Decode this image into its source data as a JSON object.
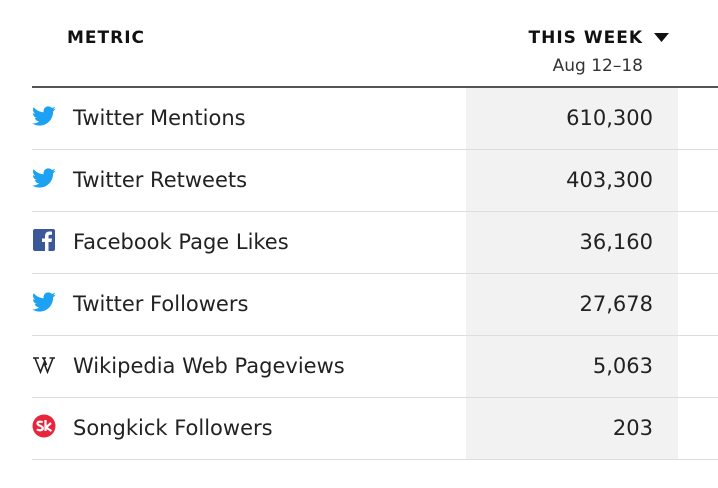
{
  "header": {
    "metric": "METRIC",
    "period": "THIS WEEK",
    "dates": "Aug 12–18"
  },
  "table": {
    "rows": [
      [
        "Twitter Mentions",
        "610,300"
      ],
      [
        "Twitter Retweets",
        "403,300"
      ],
      [
        "Facebook Page Likes",
        "36,160"
      ],
      [
        "Twitter Followers",
        "27,678"
      ],
      [
        "Wikipedia Web Pageviews",
        "5,063"
      ],
      [
        "Songkick Followers",
        "203"
      ]
    ]
  }
}
